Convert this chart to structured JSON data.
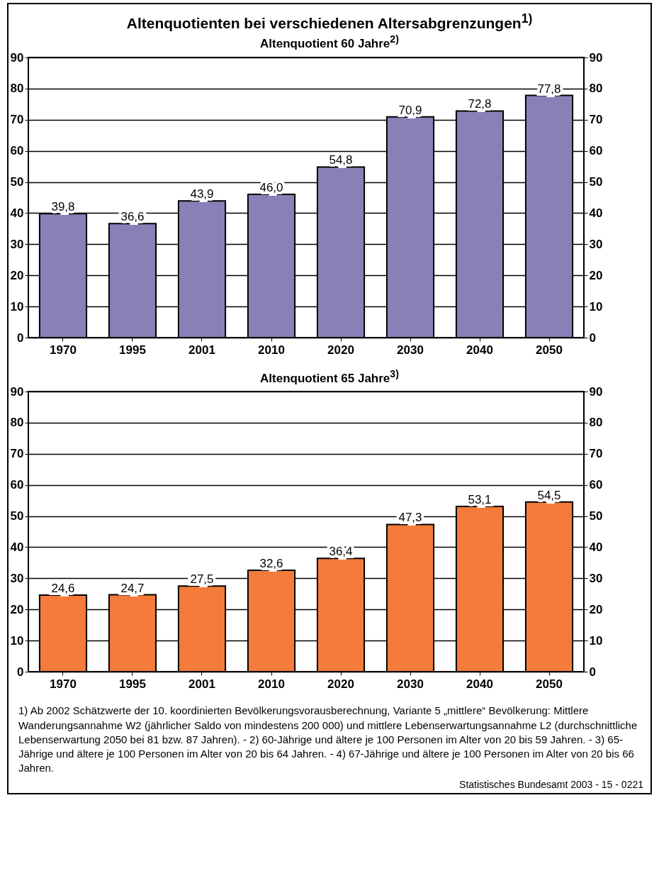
{
  "chart_data": [
    {
      "type": "bar",
      "title": "Altenquotienten bei verschiedenen Altersabgrenzungen$^{1)}$",
      "subtitle": "Altenquotient 60 Jahre$^{2)}$",
      "categories": [
        "1970",
        "1995",
        "2001",
        "2010",
        "2020",
        "2030",
        "2040",
        "2050"
      ],
      "values": [
        39.8,
        36.6,
        43.9,
        46.0,
        54.8,
        70.9,
        72.8,
        77.8
      ],
      "value_labels": [
        "39,8",
        "36,6",
        "43,9",
        "46,0",
        "54,8",
        "70,9",
        "72,8",
        "77,8"
      ],
      "color": "#8a80b8",
      "ylim": [
        0,
        90
      ],
      "yticks": [
        0,
        10,
        20,
        30,
        40,
        50,
        60,
        70,
        80,
        90
      ],
      "y2lim": [
        0,
        90
      ],
      "y2ticks": [
        0,
        10,
        20,
        30,
        40,
        50,
        60,
        70,
        80,
        90
      ],
      "grid": "y"
    },
    {
      "type": "bar",
      "title": "Altenquotient 65 Jahre$^{3)}$",
      "categories": [
        "1970",
        "1995",
        "2001",
        "2010",
        "2020",
        "2030",
        "2040",
        "2050"
      ],
      "values": [
        24.6,
        24.7,
        27.5,
        32.6,
        36.4,
        47.3,
        53.1,
        54.5
      ],
      "value_labels": [
        "24,6",
        "24,7",
        "27,5",
        "32,6",
        "36,4",
        "47,3",
        "53,1",
        "54,5"
      ],
      "color": "#f47b3a",
      "ylim": [
        0,
        90
      ],
      "yticks": [
        0,
        10,
        20,
        30,
        40,
        50,
        60,
        70,
        80,
        90
      ],
      "y2lim": [
        0,
        90
      ],
      "y2ticks": [
        0,
        10,
        20,
        30,
        40,
        50,
        60,
        70,
        80,
        90
      ],
      "grid": "y",
      "annotations": [
        "1) Ab 2002 Schätzwerte der 10. koordinierten Bevölkerungsvorausberechnung, Variante 5 „mittlere“ Bevölkerung: Mittlere Wanderungsannahme W2 (jährlicher Saldo von mindestens 200 000) und mittlere Lebenserwartungsannahme L2 (durchschnittliche Lebenserwartung 2050 bei 81 bzw. 87 Jahren). - 2) 60-Jährige und ältere je 100 Personen im Alter von 20 bis 59 Jahren. - 3) 65-Jährige und ältere je 100 Personen im Alter von 20 bis 64 Jahren. - 4) 67-Jährige und ältere je 100 Personen im Alter von 20 bis 66 Jahren.",
        "Statistisches Bundesamt 2003 - 15 - 0221"
      ]
    }
  ]
}
